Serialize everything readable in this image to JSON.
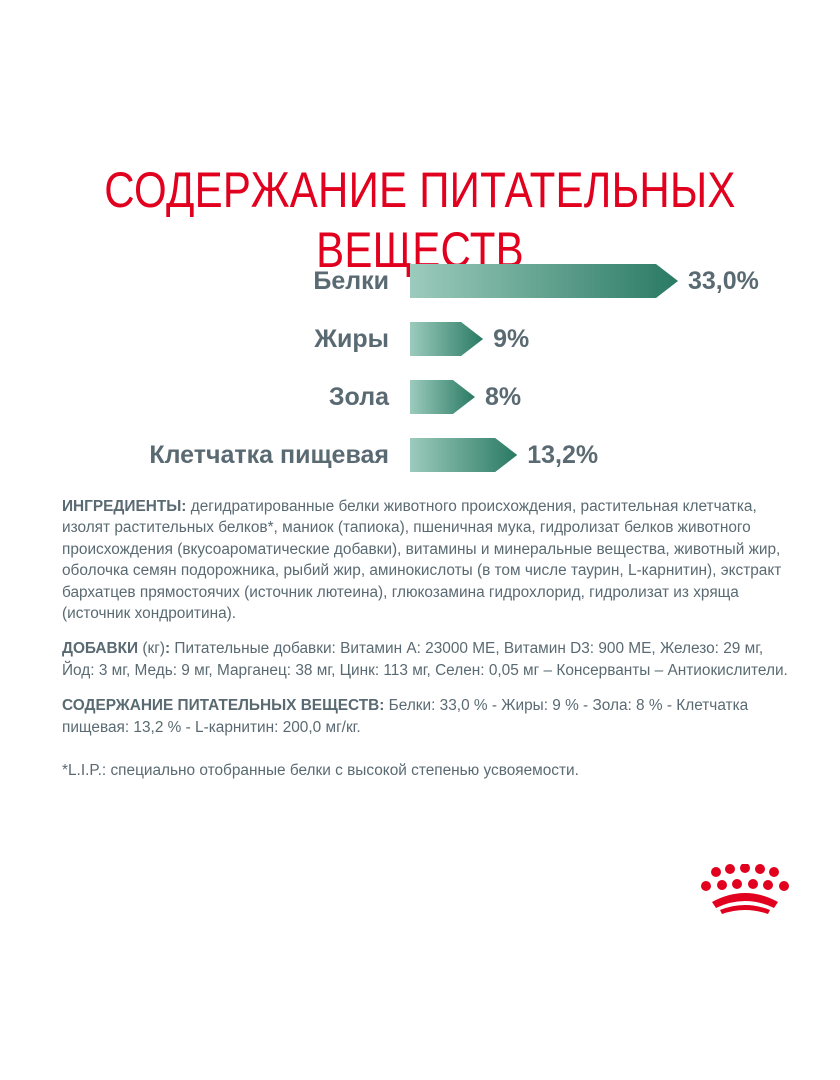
{
  "title": "Содержание питательных веществ",
  "colors": {
    "title": "#e1001e",
    "bar_start": "#9ccbbd",
    "bar_end": "#2a7a63",
    "text": "#5a6a72",
    "logo": "#e1001e"
  },
  "chart_data": {
    "type": "bar",
    "orientation": "horizontal",
    "title": "",
    "categories": [
      "Белки",
      "Жиры",
      "Зола",
      "Клетчатка пищевая"
    ],
    "values": [
      33.0,
      9,
      8,
      13.2
    ],
    "value_labels": [
      "33,0%",
      "9%",
      "8%",
      "13,2%"
    ],
    "xlabel": "",
    "ylabel": "",
    "grid": false,
    "legend": "none"
  },
  "ingredients": {
    "label": "ИНГРЕДИЕНТЫ:",
    "text": " дегидратированные белки животного происхождения, растительная клетчатка, изолят растительных белков*, маниок (тапиока), пшеничная мука, гидролизат белков животного происхождения (вкусоароматические добавки), витамины и минеральные вещества, животный жир, оболочка семян подорожника, рыбий жир, аминокислоты (в том числе таурин, L-карнитин), экстракт бархатцев прямостоячих (источник лютеина), глюкозамина гидрохлорид, гидролизат из хряща (источник хондроитина)."
  },
  "additives": {
    "label": "ДОБАВКИ",
    "unit": " (кг)",
    "colon": ":",
    "text": " Питательные добавки: Витамин А: 23000 МЕ, Витамин D3: 900 МЕ, Железо: 29 мг, Йод: 3 мг, Медь: 9 мг, Марганец: 38 мг, Цинк: 113 мг, Селен: 0,05 мг – Консерванты – Антиокислители."
  },
  "nutrients": {
    "label": "СОДЕРЖАНИЕ ПИТАТЕЛЬНЫХ ВЕЩЕСТВ:",
    "text": " Белки: 33,0 % - Жиры: 9 % - Зола: 8 % - Клетчатка пищевая: 13,2 % - L-карнитин: 200,0 мг/кг."
  },
  "footnote": "*L.I.P.: специально отобранные белки с высокой степенью усвояемости.",
  "logo": {
    "icon": "crown-logo-icon"
  }
}
